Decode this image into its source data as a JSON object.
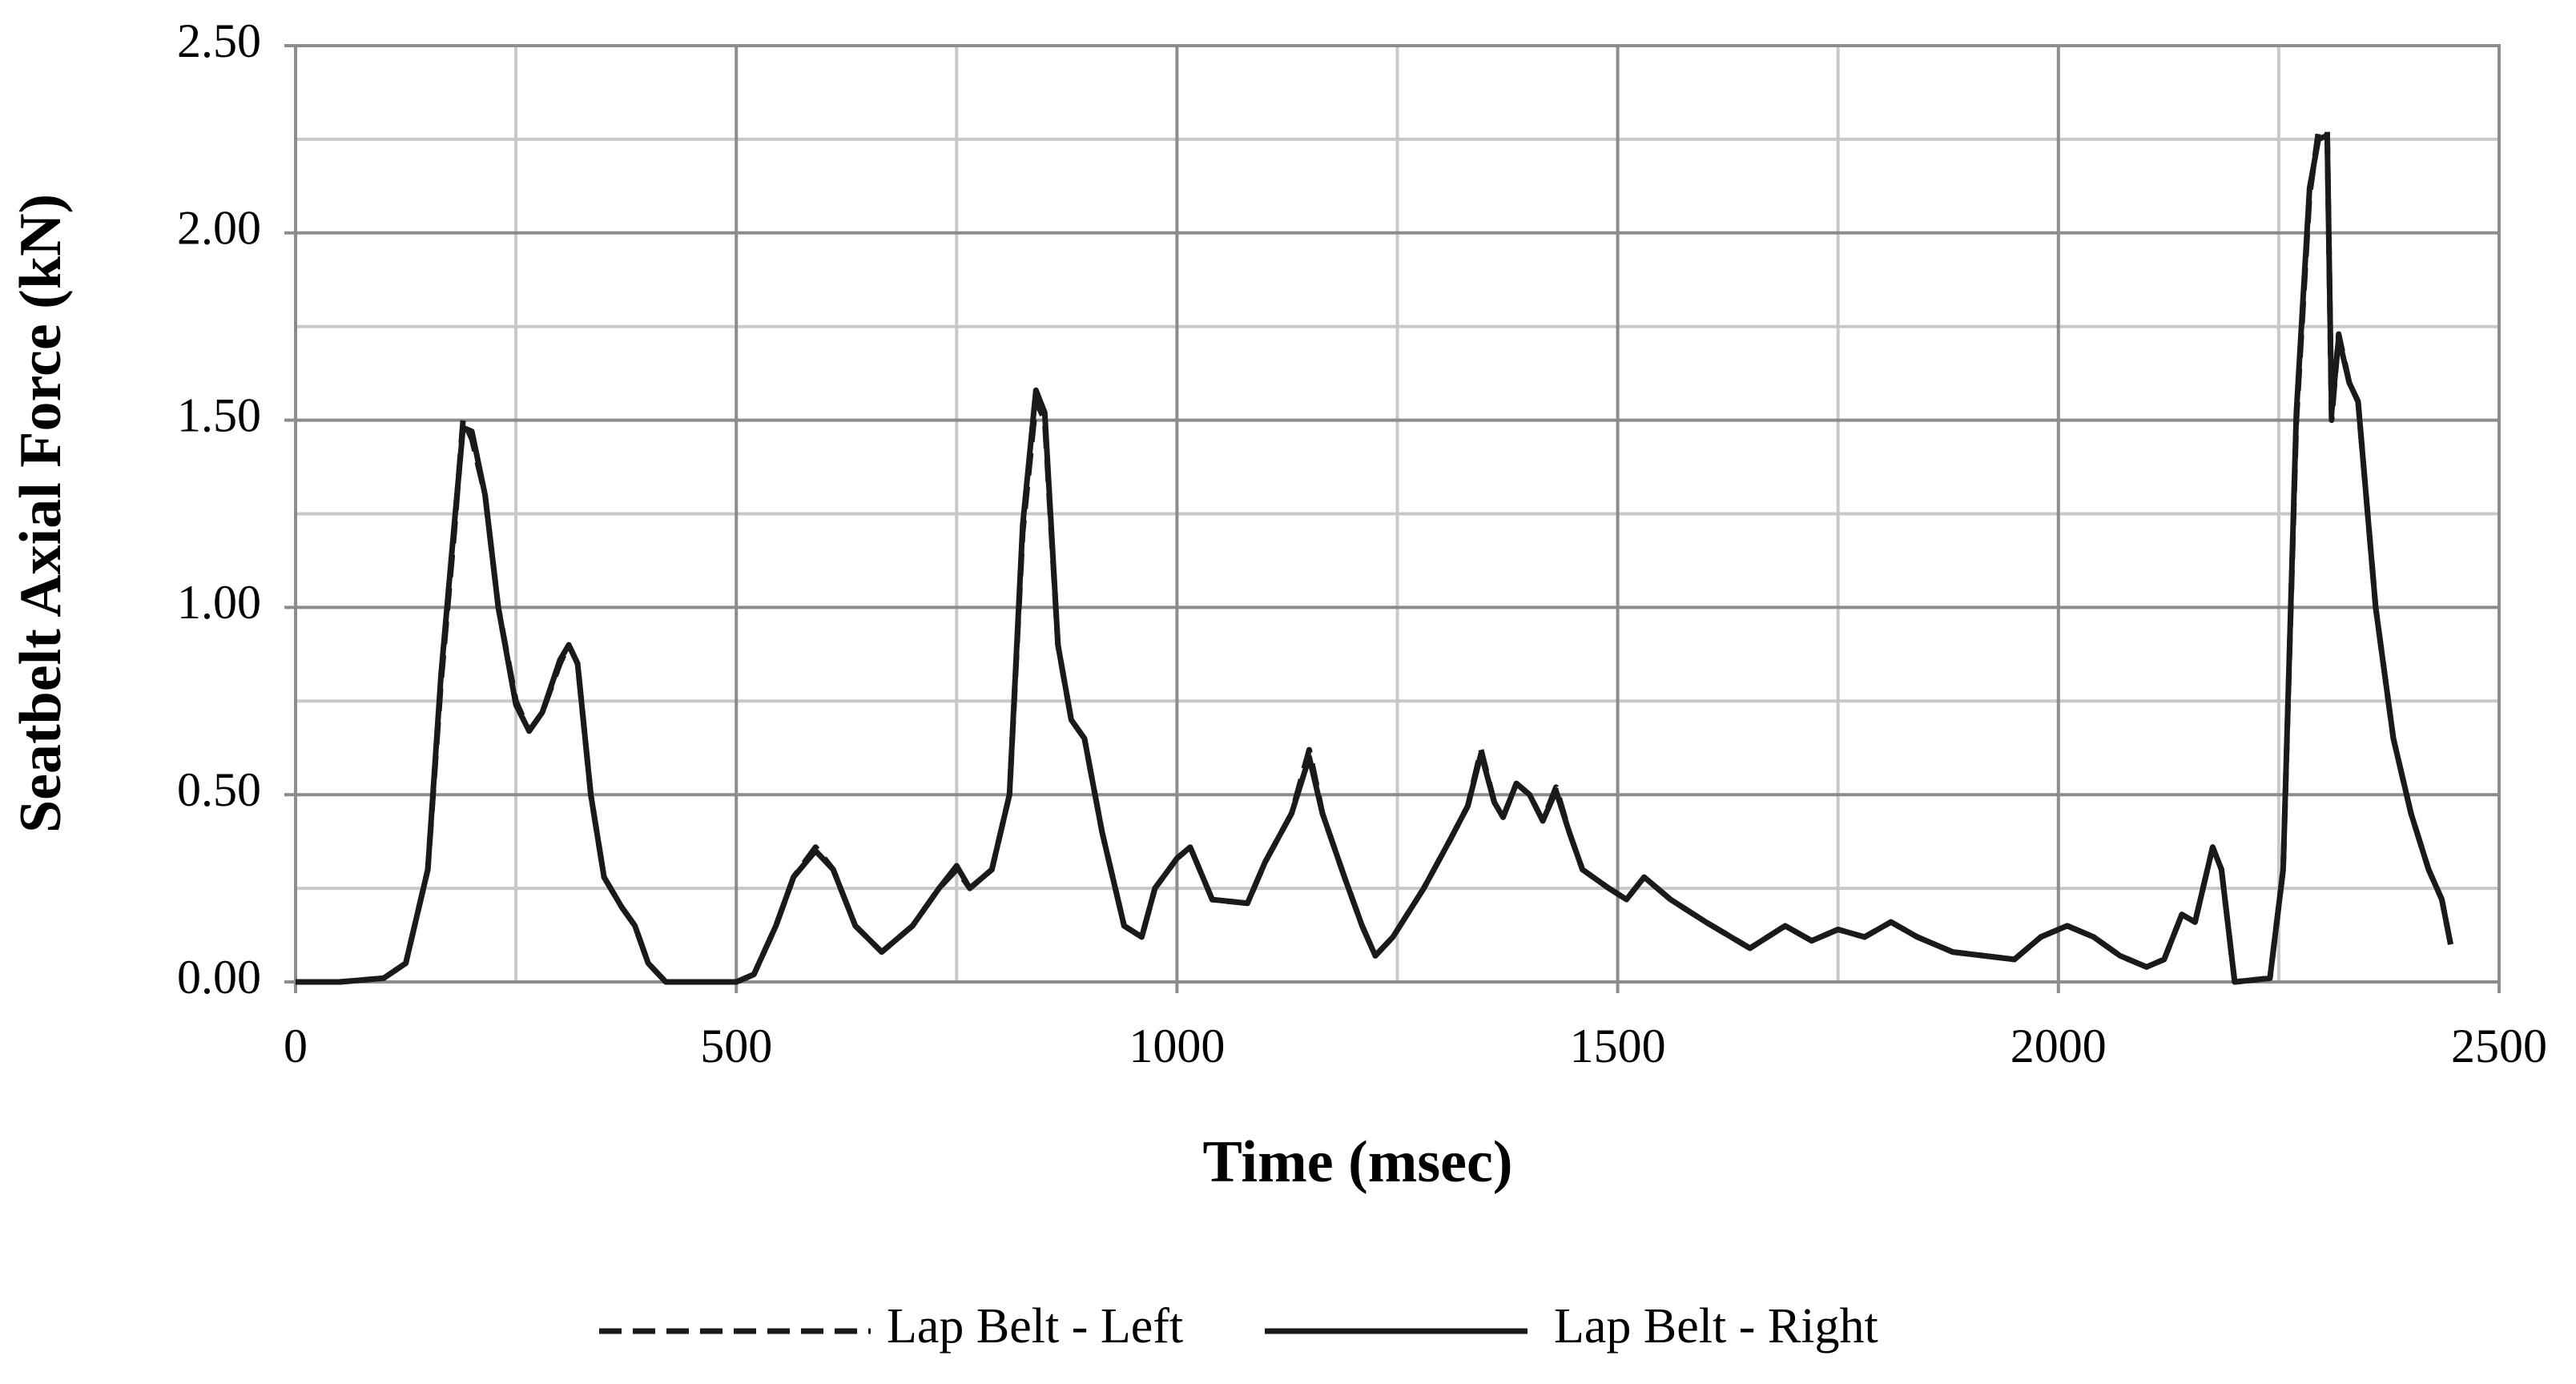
{
  "chart_data": {
    "type": "line",
    "x_label": "Time (msec)",
    "y_label": "Seatbelt Axial Force (kN)",
    "xlim": [
      0,
      2500
    ],
    "xticks": [
      0,
      500,
      1000,
      1500,
      2000,
      2500
    ],
    "ylim": [
      0,
      2.5
    ],
    "yticks": [
      {
        "value": 0,
        "label": "0.00"
      },
      {
        "value": 0.5,
        "label": "0.50"
      },
      {
        "value": 1,
        "label": "1.00"
      },
      {
        "value": 1.5,
        "label": "1.50"
      },
      {
        "value": 2,
        "label": "2.00"
      },
      {
        "value": 2.5,
        "label": "2.50"
      }
    ],
    "grid": true,
    "legend": "bottom",
    "x": [
      0,
      50,
      100,
      125,
      150,
      165,
      180,
      190,
      200,
      215,
      230,
      250,
      265,
      280,
      300,
      310,
      320,
      335,
      350,
      370,
      385,
      400,
      420,
      500,
      520,
      545,
      565,
      590,
      610,
      635,
      665,
      700,
      730,
      750,
      765,
      790,
      810,
      825,
      840,
      850,
      865,
      880,
      895,
      915,
      940,
      960,
      975,
      1000,
      1015,
      1040,
      1080,
      1100,
      1130,
      1150,
      1165,
      1190,
      1210,
      1225,
      1245,
      1280,
      1310,
      1330,
      1345,
      1360,
      1370,
      1385,
      1400,
      1415,
      1430,
      1445,
      1460,
      1490,
      1510,
      1530,
      1560,
      1600,
      1650,
      1690,
      1720,
      1750,
      1780,
      1810,
      1840,
      1880,
      1950,
      1980,
      2010,
      2040,
      2070,
      2100,
      2120,
      2140,
      2155,
      2175,
      2185,
      2200,
      2240,
      2255,
      2270,
      2285,
      2295,
      2305,
      2310,
      2318,
      2330,
      2340,
      2360,
      2380,
      2400,
      2420,
      2435,
      2445
    ],
    "series": [
      {
        "name": "Lap Belt - Left",
        "color": "#1a1a1a",
        "dash": true,
        "values": [
          0,
          0,
          0.01,
          0.05,
          0.3,
          0.8,
          1.2,
          1.5,
          1.45,
          1.3,
          1.0,
          0.75,
          0.67,
          0.72,
          0.85,
          0.9,
          0.85,
          0.5,
          0.28,
          0.2,
          0.15,
          0.05,
          0,
          0,
          0.02,
          0.15,
          0.28,
          0.36,
          0.3,
          0.15,
          0.08,
          0.15,
          0.25,
          0.3,
          0.25,
          0.3,
          0.5,
          1.2,
          1.55,
          1.5,
          0.9,
          0.7,
          0.65,
          0.4,
          0.15,
          0.12,
          0.25,
          0.33,
          0.36,
          0.22,
          0.21,
          0.32,
          0.45,
          0.62,
          0.45,
          0.28,
          0.15,
          0.07,
          0.12,
          0.25,
          0.38,
          0.47,
          0.62,
          0.48,
          0.44,
          0.53,
          0.5,
          0.43,
          0.52,
          0.4,
          0.3,
          0.25,
          0.22,
          0.28,
          0.22,
          0.16,
          0.09,
          0.15,
          0.11,
          0.14,
          0.12,
          0.16,
          0.12,
          0.08,
          0.06,
          0.12,
          0.15,
          0.12,
          0.07,
          0.04,
          0.06,
          0.18,
          0.16,
          0.36,
          0.3,
          0,
          0.01,
          0.3,
          1.5,
          2.1,
          2.27,
          2.27,
          1.5,
          1.73,
          1.6,
          1.55,
          1.0,
          0.65,
          0.45,
          0.3,
          0.22,
          0.1
        ]
      },
      {
        "name": "Lap Belt - Right",
        "color": "#1a1a1a",
        "dash": false,
        "values": [
          0,
          0,
          0.01,
          0.05,
          0.3,
          0.82,
          1.22,
          1.48,
          1.47,
          1.3,
          1.0,
          0.74,
          0.67,
          0.72,
          0.86,
          0.9,
          0.85,
          0.5,
          0.28,
          0.2,
          0.15,
          0.05,
          0,
          0,
          0.02,
          0.15,
          0.28,
          0.35,
          0.3,
          0.15,
          0.08,
          0.15,
          0.25,
          0.31,
          0.25,
          0.3,
          0.5,
          1.22,
          1.58,
          1.52,
          0.9,
          0.7,
          0.65,
          0.4,
          0.15,
          0.12,
          0.25,
          0.33,
          0.36,
          0.22,
          0.21,
          0.32,
          0.45,
          0.6,
          0.45,
          0.28,
          0.15,
          0.07,
          0.12,
          0.25,
          0.38,
          0.47,
          0.61,
          0.48,
          0.44,
          0.53,
          0.5,
          0.43,
          0.51,
          0.4,
          0.3,
          0.25,
          0.22,
          0.28,
          0.22,
          0.16,
          0.09,
          0.15,
          0.11,
          0.14,
          0.12,
          0.16,
          0.12,
          0.08,
          0.06,
          0.12,
          0.15,
          0.12,
          0.07,
          0.04,
          0.06,
          0.18,
          0.16,
          0.36,
          0.3,
          0,
          0.01,
          0.3,
          1.52,
          2.12,
          2.25,
          2.26,
          1.52,
          1.72,
          1.6,
          1.55,
          1.0,
          0.65,
          0.45,
          0.3,
          0.22,
          0.1
        ]
      }
    ]
  }
}
